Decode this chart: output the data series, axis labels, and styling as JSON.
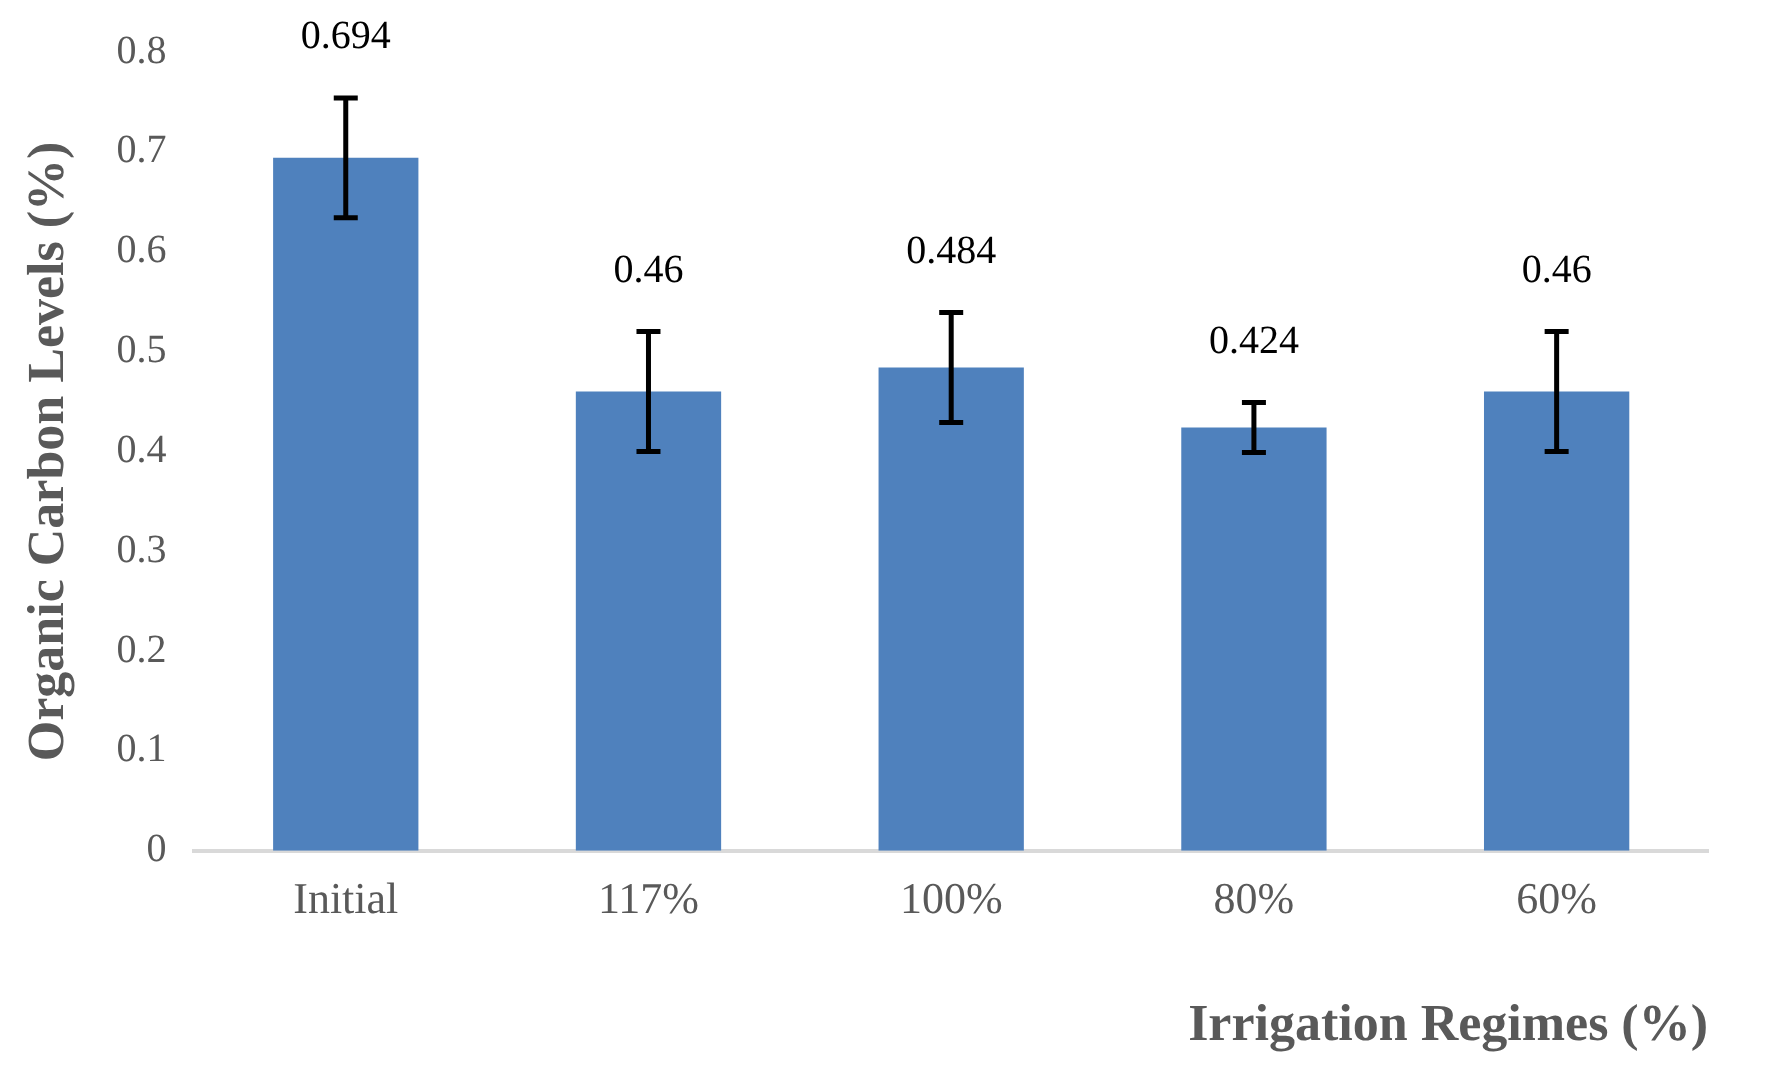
{
  "chart_data": {
    "type": "bar",
    "xlabel": "Irrigation Regimes (%)",
    "ylabel": "Organic Carbon Levels (%)",
    "categories": [
      "Initial",
      "117%",
      "100%",
      "80%",
      "60%"
    ],
    "values": [
      0.694,
      0.46,
      0.484,
      0.424,
      0.46
    ],
    "errors": [
      0.06,
      0.06,
      0.055,
      0.025,
      0.06
    ],
    "color": "#4f81bd",
    "data_labels": true,
    "ylim": [
      0,
      0.8
    ],
    "yticks": [
      0,
      0.1,
      0.2,
      0.3,
      0.4,
      0.5,
      0.6,
      0.7,
      0.8
    ],
    "grid": false,
    "legend": false
  }
}
